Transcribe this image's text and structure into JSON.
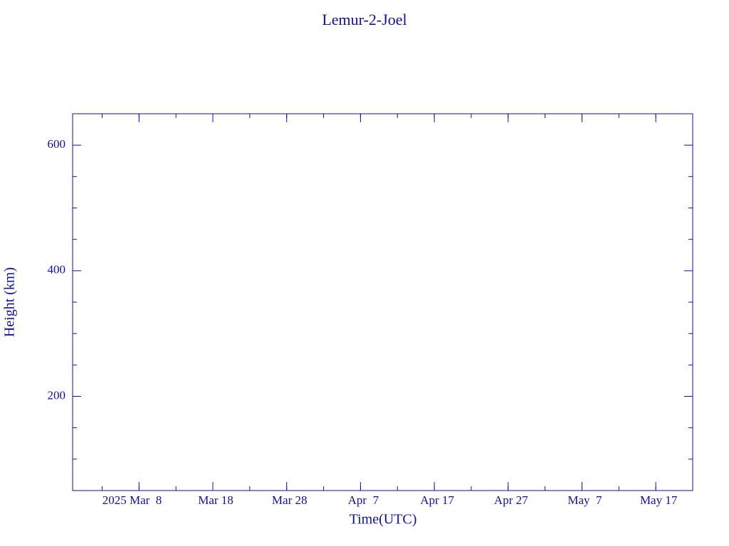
{
  "chart_data": {
    "type": "line",
    "title": "Lemur-2-Joel",
    "x_label": "Time(UTC)",
    "y_label": "Height (km)",
    "xlim": [
      "2025-02-27",
      "2025-05-22"
    ],
    "xticks": [
      {
        "value": "2025-03-08",
        "label": "2025 Mar  8"
      },
      {
        "value": "2025-03-18",
        "label": "Mar 18"
      },
      {
        "value": "2025-03-28",
        "label": "Mar 28"
      },
      {
        "value": "2025-04-07",
        "label": "Apr  7"
      },
      {
        "value": "2025-04-17",
        "label": "Apr 17"
      },
      {
        "value": "2025-04-27",
        "label": "Apr 27"
      },
      {
        "value": "2025-05-07",
        "label": "May  7"
      },
      {
        "value": "2025-05-17",
        "label": "May 17"
      }
    ],
    "ylim": [
      50,
      650
    ],
    "yticks": [
      200,
      400,
      600
    ],
    "color": "#1010a0"
  }
}
